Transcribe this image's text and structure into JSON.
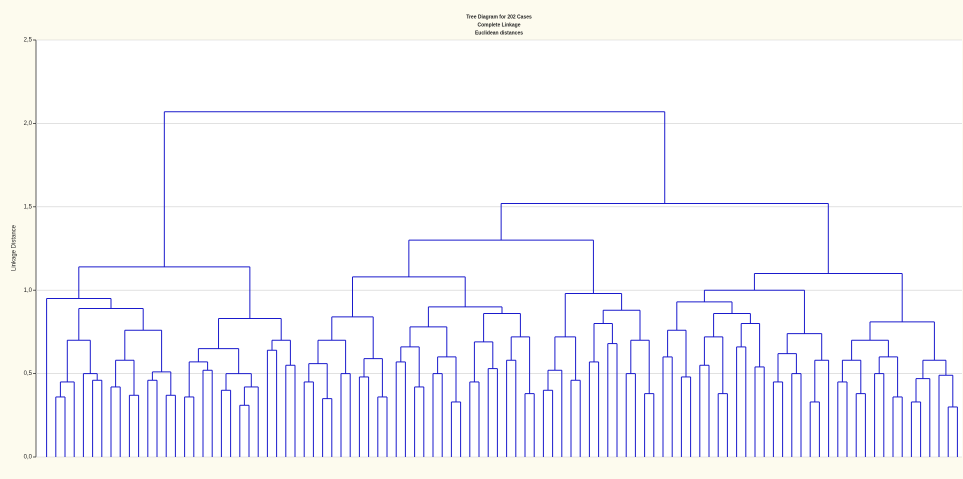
{
  "chart_data": {
    "type": "dendrogram",
    "title": "Tree Diagram for 202 Cases",
    "subtitle": "Complete Linkage",
    "subtitle2": "Euclidean distances",
    "ylabel": "Linkage Distance",
    "ylim": [
      0,
      2.5
    ],
    "yticks": [
      {
        "value": 0,
        "label": "0,0"
      },
      {
        "value": 0.5,
        "label": "0,5"
      },
      {
        "value": 1,
        "label": "1,0"
      },
      {
        "value": 1.5,
        "label": "1,5"
      },
      {
        "value": 2,
        "label": "2,0"
      },
      {
        "value": 2.5,
        "label": "2,5"
      }
    ],
    "grid": true,
    "color": "#1a1acc",
    "tree": [
      2.07,
      [
        1.14,
        [
          0.95,
          0,
          [
            0.89,
            [
              0.7,
              [
                0.45,
                [
                  0.36,
                  0,
                  0
                ],
                0
              ],
              [
                0.5,
                0,
                [
                  0.46,
                  0,
                  0
                ]
              ]
            ],
            [
              0.76,
              [
                0.58,
                [
                  0.42,
                  0,
                  0
                ],
                [
                  0.37,
                  0,
                  0
                ]
              ],
              [
                0.51,
                [
                  0.46,
                  0,
                  0
                ],
                [
                  0.37,
                  0,
                  0
                ]
              ]
            ]
          ]
        ],
        [
          0.83,
          [
            0.65,
            [
              0.57,
              [
                0.36,
                0,
                0
              ],
              [
                0.52,
                0,
                0
              ]
            ],
            [
              0.5,
              [
                0.4,
                0,
                0
              ],
              [
                0.42,
                [
                  0.31,
                  0,
                  0
                ],
                0
              ]
            ]
          ],
          [
            0.7,
            [
              0.64,
              0,
              0
            ],
            [
              0.55,
              0,
              0
            ]
          ]
        ]
      ],
      [
        1.52,
        [
          1.3,
          [
            1.08,
            [
              0.84,
              [
                0.7,
                [
                  0.56,
                  [
                    0.45,
                    0,
                    0
                  ],
                  [
                    0.35,
                    0,
                    0
                  ]
                ],
                [
                  0.5,
                  0,
                  0
                ]
              ],
              [
                0.59,
                [
                  0.48,
                  0,
                  0
                ],
                [
                  0.36,
                  0,
                  0
                ]
              ]
            ],
            [
              0.9,
              [
                0.78,
                [
                  0.66,
                  [
                    0.57,
                    0,
                    0
                  ],
                  [
                    0.42,
                    0,
                    0
                  ]
                ],
                [
                  0.6,
                  [
                    0.5,
                    0,
                    0
                  ],
                  [
                    0.33,
                    0,
                    0
                  ]
                ]
              ],
              [
                0.86,
                [
                  0.69,
                  [
                    0.45,
                    0,
                    0
                  ],
                  [
                    0.53,
                    0,
                    0
                  ]
                ],
                [
                  0.72,
                  [
                    0.58,
                    0,
                    0
                  ],
                  [
                    0.38,
                    0,
                    0
                  ]
                ]
              ]
            ]
          ],
          [
            0.98,
            [
              0.72,
              [
                0.52,
                [
                  0.4,
                  0,
                  0
                ],
                0
              ],
              [
                0.46,
                0,
                0
              ]
            ],
            [
              0.88,
              [
                0.8,
                [
                  0.57,
                  0,
                  0
                ],
                [
                  0.68,
                  0,
                  0
                ]
              ],
              [
                0.7,
                [
                  0.5,
                  0,
                  0
                ],
                [
                  0.38,
                  0,
                  0
                ]
              ]
            ]
          ]
        ],
        [
          1.1,
          [
            1.0,
            [
              0.93,
              [
                0.76,
                [
                  0.6,
                  0,
                  0
                ],
                [
                  0.48,
                  0,
                  0
                ]
              ],
              [
                0.86,
                [
                  0.72,
                  [
                    0.55,
                    0,
                    0
                  ],
                  [
                    0.38,
                    0,
                    0
                  ]
                ],
                [
                  0.8,
                  [
                    0.66,
                    0,
                    0
                  ],
                  [
                    0.54,
                    0,
                    0
                  ]
                ]
              ]
            ],
            [
              0.74,
              [
                0.62,
                [
                  0.45,
                  0,
                  0
                ],
                [
                  0.5,
                  0,
                  0
                ]
              ],
              [
                0.58,
                [
                  0.33,
                  0,
                  0
                ],
                0
              ]
            ]
          ],
          [
            0.81,
            [
              0.7,
              [
                0.58,
                [
                  0.45,
                  0,
                  0
                ],
                [
                  0.38,
                  0,
                  0
                ]
              ],
              [
                0.6,
                [
                  0.5,
                  0,
                  0
                ],
                [
                  0.36,
                  0,
                  0
                ]
              ]
            ],
            [
              0.58,
              [
                0.47,
                [
                  0.33,
                  0,
                  0
                ],
                0
              ],
              [
                0.49,
                0,
                [
                  0.3,
                  0,
                  0
                ]
              ]
            ]
          ]
        ]
      ]
    ]
  }
}
